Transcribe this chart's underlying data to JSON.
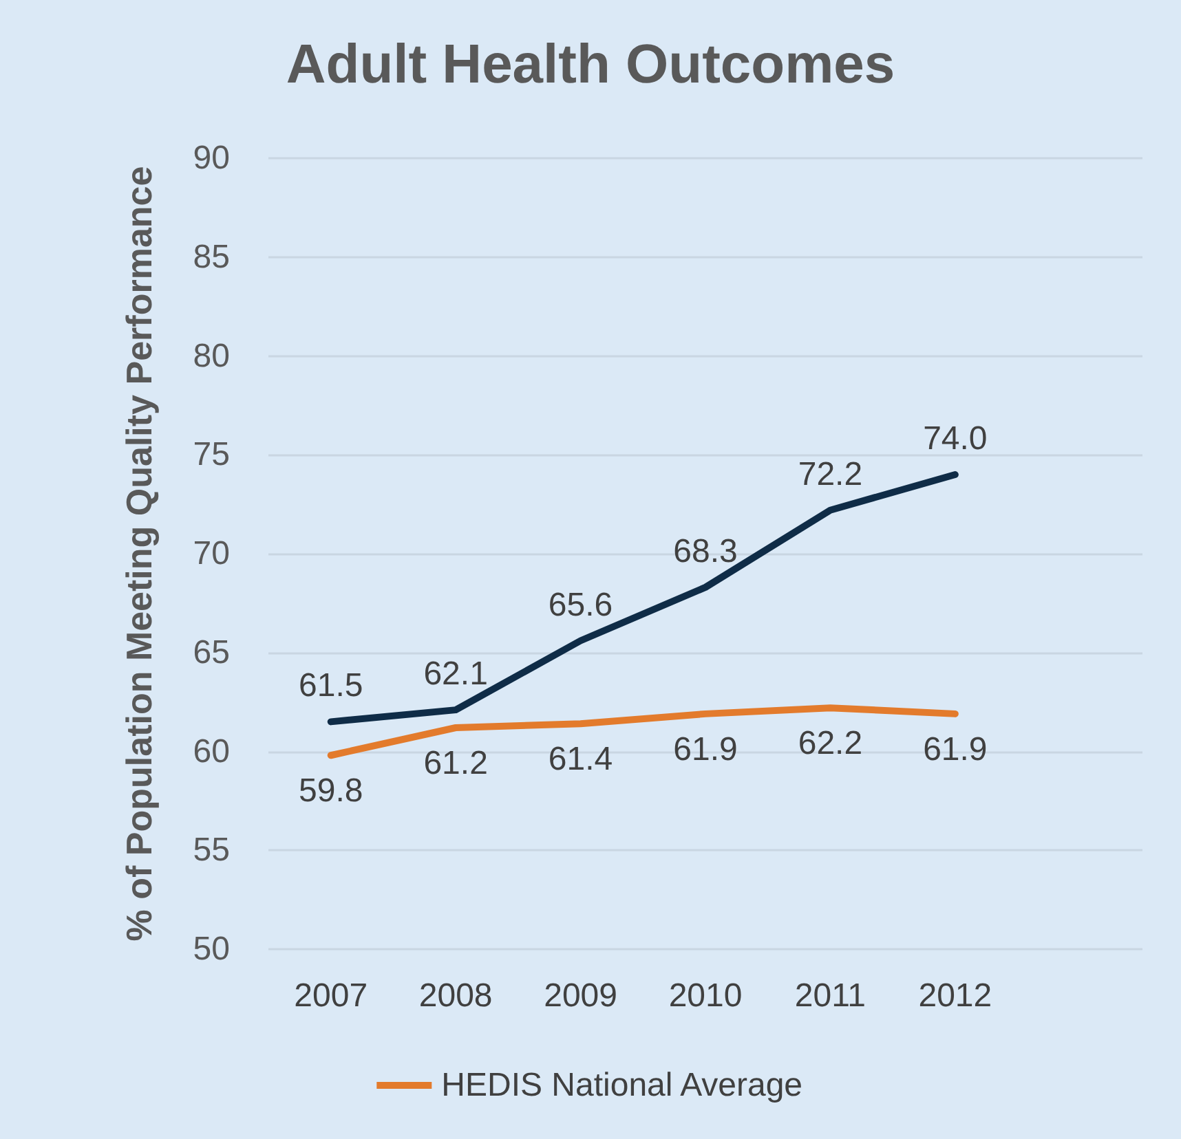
{
  "chart_data": {
    "type": "line",
    "title": "Adult Health Outcomes",
    "ylabel": "% of Population Meeting Quality Performance",
    "categories": [
      "2007",
      "2008",
      "2009",
      "2010",
      "2011",
      "2012",
      null
    ],
    "series": [
      {
        "color": "#0f2c47",
        "values": [
          61.5,
          62.1,
          65.6,
          68.3,
          72.2,
          74.0,
          null
        ],
        "value_labels": [
          "61.5",
          "62.1",
          "65.6",
          "68.3",
          "72.2",
          "74.0",
          null
        ]
      },
      {
        "name": "HEDIS National Average",
        "color": "#e37b2c",
        "values": [
          59.8,
          61.2,
          61.4,
          61.9,
          62.2,
          61.9,
          null
        ],
        "value_labels": [
          "59.8",
          "61.2",
          "61.4",
          "61.9",
          "62.2",
          "61.9",
          null
        ]
      }
    ],
    "ylim": [
      50,
      90
    ],
    "yticks": [
      50,
      55,
      60,
      65,
      70,
      75,
      80,
      85,
      90
    ],
    "grid": "y",
    "legend": "bottom",
    "marker": "none",
    "line_style": "solid"
  }
}
